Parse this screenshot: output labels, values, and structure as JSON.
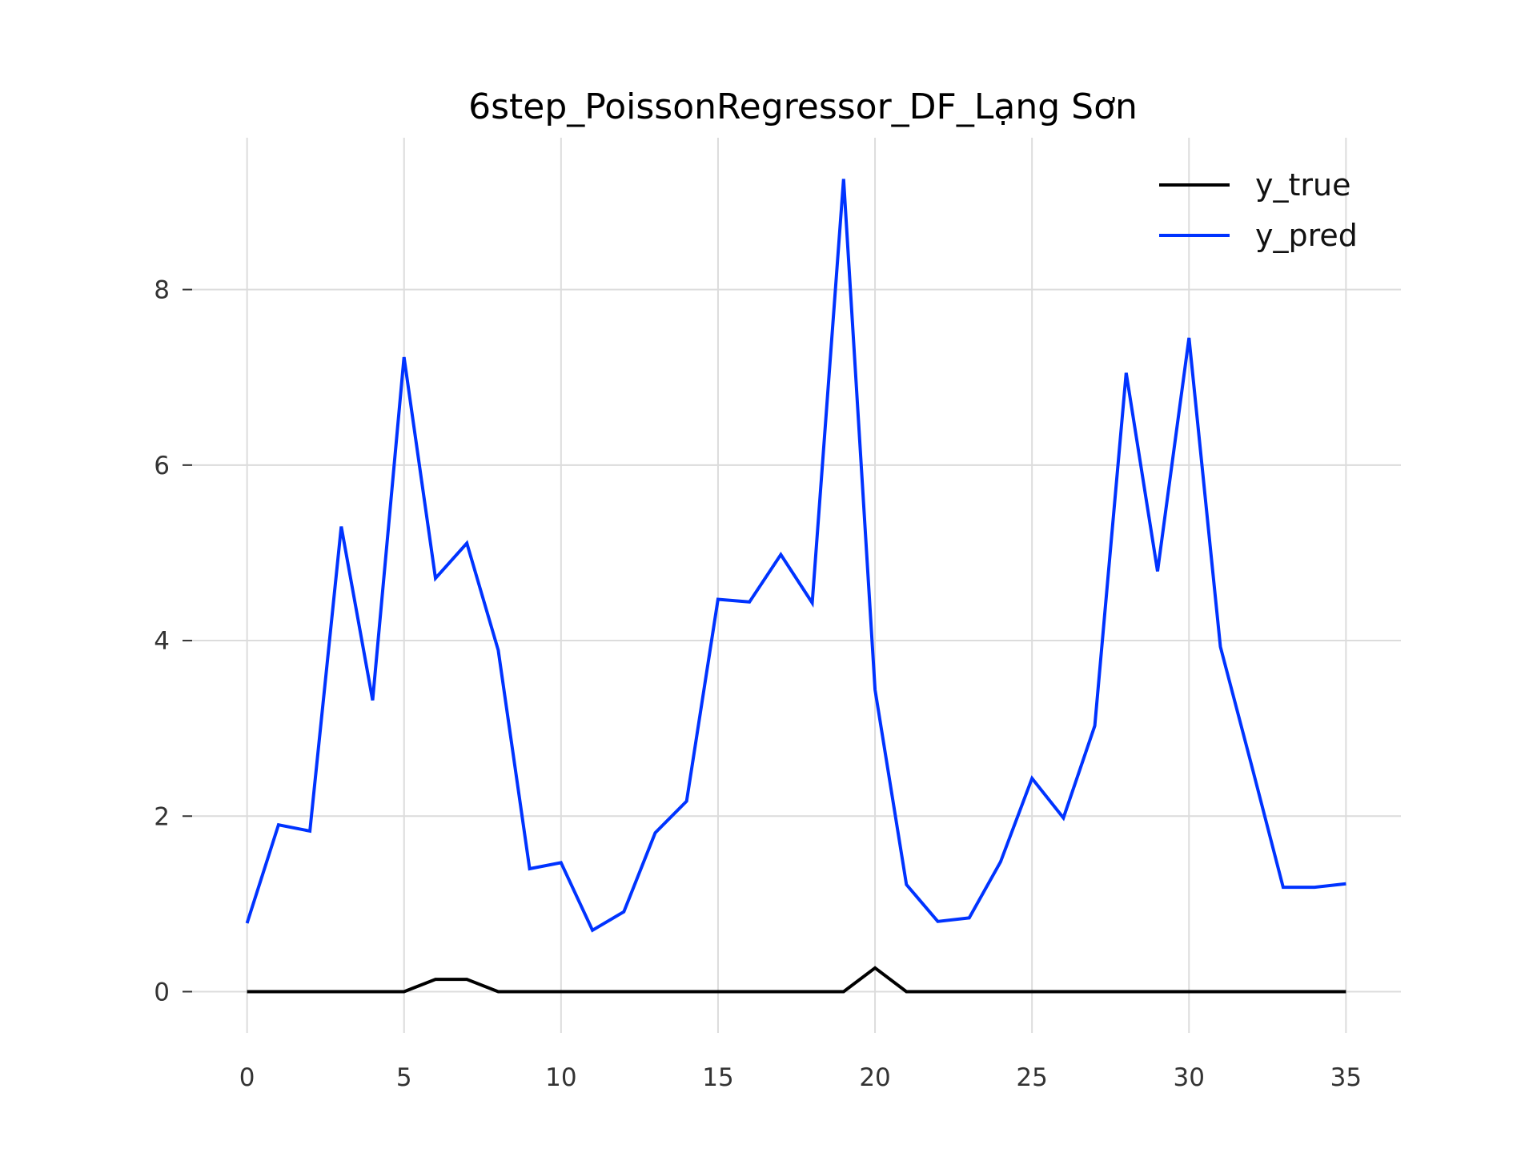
{
  "chart_data": {
    "type": "line",
    "title": "6step_PoissonRegressor_DF_Lạng Sơn",
    "xlabel": "",
    "ylabel": "",
    "x": [
      0,
      1,
      2,
      3,
      4,
      5,
      6,
      7,
      8,
      9,
      10,
      11,
      12,
      13,
      14,
      15,
      16,
      17,
      18,
      19,
      20,
      21,
      22,
      23,
      24,
      25,
      26,
      27,
      28,
      29,
      30,
      31,
      32,
      33,
      34,
      35
    ],
    "xlim": [
      -1.75,
      36.75
    ],
    "ylim": [
      -0.47,
      9.73
    ],
    "xticks": [
      0,
      5,
      10,
      15,
      20,
      25,
      30,
      35
    ],
    "xtick_labels": [
      "0",
      "5",
      "10",
      "15",
      "20",
      "25",
      "30",
      "35"
    ],
    "yticks": [
      0,
      2,
      4,
      6,
      8
    ],
    "ytick_labels": [
      "0",
      "2",
      "4",
      "6",
      "8"
    ],
    "grid": true,
    "legend": "top-right",
    "series": [
      {
        "name": "y_true",
        "color": "#000000",
        "values": [
          0,
          0,
          0,
          0,
          0,
          0,
          0.14,
          0.14,
          0,
          0,
          0,
          0,
          0,
          0,
          0,
          0,
          0,
          0,
          0,
          0,
          0.27,
          0,
          0,
          0,
          0,
          0,
          0,
          0,
          0,
          0,
          0,
          0,
          0,
          0,
          0,
          0
        ]
      },
      {
        "name": "y_pred",
        "color": "#0033ff",
        "values": [
          0.78,
          1.9,
          1.83,
          5.3,
          3.32,
          7.23,
          4.71,
          5.11,
          3.89,
          1.4,
          1.47,
          0.7,
          0.91,
          1.81,
          2.17,
          4.47,
          4.44,
          4.98,
          4.43,
          9.26,
          3.44,
          1.22,
          0.8,
          0.84,
          1.48,
          2.43,
          1.98,
          3.03,
          7.05,
          4.79,
          7.45,
          3.93,
          2.57,
          1.19,
          1.19,
          1.23
        ]
      }
    ]
  }
}
